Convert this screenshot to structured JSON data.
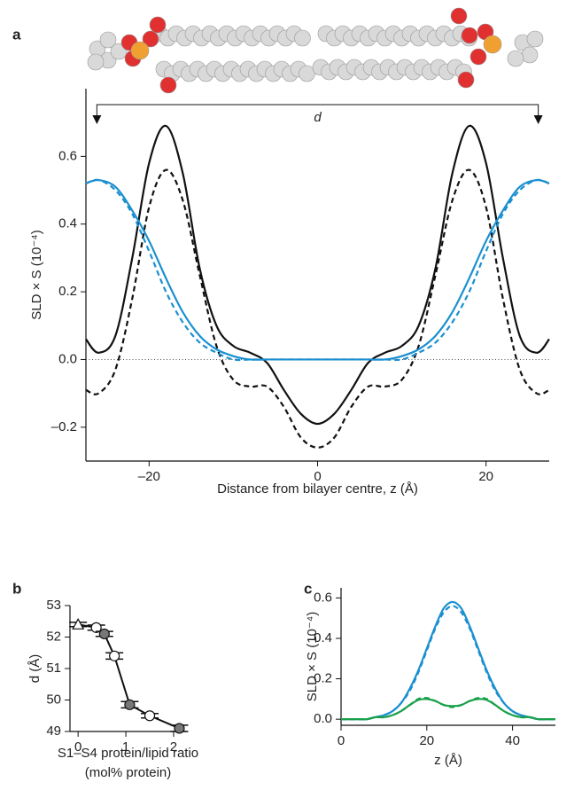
{
  "chart_data": [
    {
      "type": "line",
      "panel": "a",
      "xlabel": "Distance from bilayer centre, z (Å)",
      "ylabel": "SLD × S (10⁻⁴)",
      "xlim": [
        -27.5,
        27.5
      ],
      "ylim": [
        -0.3,
        0.8
      ],
      "xticks": [
        {
          "value": -20,
          "label": "–20"
        },
        0,
        20
      ],
      "yticks": [
        {
          "value": -0.2,
          "label": "–0.2"
        },
        {
          "value": 0,
          "label": "0.0"
        },
        0.2,
        0.4,
        0.6
      ],
      "zero_line": true,
      "annotation": {
        "text": "d",
        "x": [
          -26.2,
          26.2
        ]
      },
      "x": [
        -27.5,
        -26,
        -24,
        -22,
        -20,
        -18,
        -16,
        -14,
        -12,
        -10,
        -8,
        -6,
        -4,
        -2,
        0,
        2,
        4,
        6,
        8,
        10,
        12,
        14,
        16,
        18,
        20,
        22,
        24,
        26,
        27.5
      ],
      "series": [
        {
          "color": "#111111",
          "dash": false,
          "values": [
            0.06,
            0.02,
            0.07,
            0.3,
            0.58,
            0.69,
            0.55,
            0.27,
            0.1,
            0.04,
            0.02,
            -0.01,
            -0.09,
            -0.16,
            -0.19,
            -0.16,
            -0.09,
            -0.01,
            0.02,
            0.04,
            0.1,
            0.27,
            0.55,
            0.69,
            0.58,
            0.3,
            0.07,
            0.02,
            0.06
          ]
        },
        {
          "color": "#111111",
          "dash": true,
          "values": [
            -0.09,
            -0.1,
            -0.03,
            0.18,
            0.45,
            0.56,
            0.47,
            0.25,
            0.04,
            -0.06,
            -0.08,
            -0.08,
            -0.14,
            -0.23,
            -0.26,
            -0.23,
            -0.14,
            -0.08,
            -0.08,
            -0.06,
            0.04,
            0.25,
            0.47,
            0.56,
            0.45,
            0.18,
            -0.03,
            -0.1,
            -0.09
          ]
        },
        {
          "color": "#1a8fd0",
          "dash": false,
          "values": [
            0.52,
            0.53,
            0.51,
            0.44,
            0.35,
            0.24,
            0.14,
            0.07,
            0.03,
            0.01,
            0,
            0,
            0,
            0,
            0,
            0,
            0,
            0,
            0,
            0.01,
            0.03,
            0.07,
            0.14,
            0.24,
            0.35,
            0.44,
            0.51,
            0.53,
            0.52
          ]
        },
        {
          "color": "#1a8fd0",
          "dash": true,
          "values": [
            0.52,
            0.53,
            0.5,
            0.43,
            0.32,
            0.2,
            0.11,
            0.05,
            0.02,
            0,
            0,
            0,
            0,
            0,
            0,
            0,
            0,
            0,
            0,
            0,
            0.02,
            0.05,
            0.11,
            0.2,
            0.32,
            0.43,
            0.5,
            0.53,
            0.52
          ]
        }
      ]
    },
    {
      "type": "errorbar",
      "panel": "b",
      "xlabel": [
        "S1–S4 protein/lipid ratio",
        "(mol% protein)"
      ],
      "ylabel": "d (Å)",
      "xlim": [
        -0.17,
        2.26
      ],
      "ylim": [
        49,
        53
      ],
      "xticks": [
        0,
        1,
        2
      ],
      "yticks": [
        49,
        50,
        51,
        52,
        53
      ],
      "x": [
        0,
        0.38,
        0.55,
        0.76,
        1.08,
        1.5,
        2.12
      ],
      "series": [
        {
          "color": "#111111",
          "values": [
            52.4,
            52.3,
            52.1,
            51.4,
            49.85,
            49.5,
            49.1
          ],
          "errors": [
            0.07,
            0.08,
            0.08,
            0.1,
            0.1,
            0.07,
            0.1
          ],
          "markers": [
            "triangle",
            "open",
            "filled",
            "open",
            "filled",
            "open",
            "filled"
          ]
        }
      ]
    },
    {
      "type": "line",
      "panel": "c",
      "xlabel": "z (Å)",
      "ylabel": "SLD × S (10⁻⁴)",
      "xlim": [
        0,
        50
      ],
      "ylim": [
        -0.03,
        0.65
      ],
      "xticks": [
        0,
        20,
        40
      ],
      "yticks": [
        {
          "value": 0,
          "label": "0.0"
        },
        0.2,
        0.4,
        0.6
      ],
      "x": [
        0,
        2,
        4,
        6,
        8,
        10,
        12,
        14,
        16,
        18,
        20,
        22,
        24,
        26,
        28,
        30,
        32,
        34,
        36,
        38,
        40,
        42,
        44,
        46,
        48,
        50
      ],
      "series": [
        {
          "color": "#1a8fd0",
          "dash": false,
          "values": [
            0,
            0,
            0,
            0,
            0.01,
            0.02,
            0.04,
            0.08,
            0.15,
            0.24,
            0.35,
            0.46,
            0.55,
            0.58,
            0.55,
            0.46,
            0.35,
            0.24,
            0.15,
            0.08,
            0.04,
            0.02,
            0.01,
            0,
            0,
            0
          ]
        },
        {
          "color": "#1a8fd0",
          "dash": true,
          "values": [
            0,
            0,
            0,
            0,
            0.01,
            0.02,
            0.04,
            0.08,
            0.14,
            0.23,
            0.34,
            0.45,
            0.53,
            0.56,
            0.53,
            0.45,
            0.34,
            0.23,
            0.14,
            0.08,
            0.04,
            0.02,
            0.01,
            0,
            0,
            0
          ]
        },
        {
          "color": "#1aa04a",
          "dash": false,
          "values": [
            0,
            0,
            0,
            0,
            0.01,
            0.01,
            0.02,
            0.04,
            0.07,
            0.095,
            0.1,
            0.09,
            0.07,
            0.065,
            0.07,
            0.09,
            0.1,
            0.095,
            0.07,
            0.04,
            0.02,
            0.01,
            0.01,
            0,
            0,
            0
          ]
        },
        {
          "color": "#1aa04a",
          "dash": true,
          "values": [
            0,
            0,
            0,
            0,
            0.01,
            0.01,
            0.02,
            0.04,
            0.07,
            0.1,
            0.105,
            0.09,
            0.07,
            0.06,
            0.07,
            0.09,
            0.105,
            0.1,
            0.07,
            0.04,
            0.02,
            0.01,
            0.01,
            0,
            0,
            0
          ]
        }
      ]
    }
  ]
}
